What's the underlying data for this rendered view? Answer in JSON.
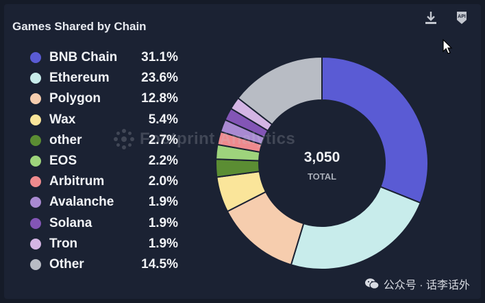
{
  "title": "Games Shared by Chain",
  "center": {
    "value": "3,050",
    "label": "TOTAL"
  },
  "watermark": "Footprint Analytics",
  "social_text": "公众号 · 话李话外",
  "icons": {
    "download": "download-icon",
    "api": "api-icon",
    "api_text": "API"
  },
  "chart_data": {
    "type": "pie",
    "variant": "donut",
    "title": "Games Shared by Chain",
    "total": 3050,
    "total_label": "TOTAL",
    "legend_placement": "left",
    "series": [
      {
        "name": "BNB Chain",
        "value": 31.1,
        "label": "31.1%",
        "color": "#5a5bd4"
      },
      {
        "name": "Ethereum",
        "value": 23.6,
        "label": "23.6%",
        "color": "#c8eceb"
      },
      {
        "name": "Polygon",
        "value": 12.8,
        "label": "12.8%",
        "color": "#f6cdae"
      },
      {
        "name": "Wax",
        "value": 5.4,
        "label": "5.4%",
        "color": "#fae59a"
      },
      {
        "name": "other",
        "value": 2.7,
        "label": "2.7%",
        "color": "#5b8d33"
      },
      {
        "name": "EOS",
        "value": 2.2,
        "label": "2.2%",
        "color": "#9ed47c"
      },
      {
        "name": "Arbitrum",
        "value": 2.0,
        "label": "2.0%",
        "color": "#ef8a8e"
      },
      {
        "name": "Avalanche",
        "value": 1.9,
        "label": "1.9%",
        "color": "#a98ad2"
      },
      {
        "name": "Solana",
        "value": 1.9,
        "label": "1.9%",
        "color": "#8355b6"
      },
      {
        "name": "Tron",
        "value": 1.9,
        "label": "1.9%",
        "color": "#d4b5e4"
      },
      {
        "name": "Other",
        "value": 14.5,
        "label": "14.5%",
        "color": "#b8bcc4"
      }
    ]
  }
}
